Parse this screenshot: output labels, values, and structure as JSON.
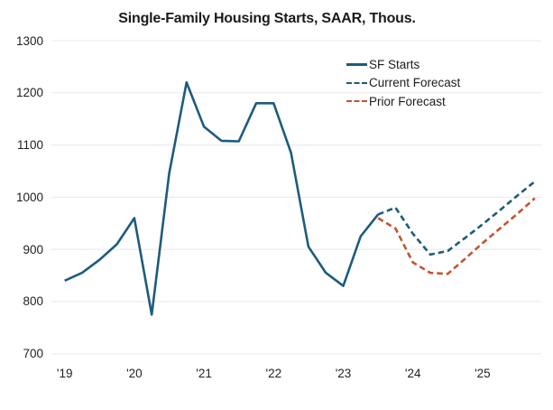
{
  "chart_data": {
    "type": "line",
    "title": "Single-Family Housing Starts, SAAR, Thous.",
    "grid": "horizontal",
    "legend_position": "upper-right",
    "colors": {
      "actual_line": "#1e5b7e",
      "current_forecast_line": "#1e5b7e",
      "prior_forecast_line": "#c2552f",
      "gridline": "#e8e8e8",
      "text": "#1f1f1f"
    },
    "y_axis": {
      "min": 700,
      "max": 1300,
      "tick_step": 100,
      "tick_labels": [
        "700",
        "800",
        "900",
        "1000",
        "1100",
        "1200",
        "1300"
      ]
    },
    "x_axis": {
      "start": "2019 Q1",
      "points_per_year": 4,
      "tick_labels": [
        "'19",
        "'20",
        "'21",
        "'22",
        "'23",
        "'24",
        "'25"
      ]
    },
    "series": [
      {
        "name": "SF Starts",
        "style": "solid",
        "color": "#1e5b7e",
        "start_index": 0,
        "values": [
          840,
          855,
          880,
          910,
          960,
          775,
          1045,
          1220,
          1135,
          1108,
          1107,
          1180,
          1180,
          1085,
          905,
          855,
          830,
          925,
          967
        ]
      },
      {
        "name": "Current Forecast",
        "style": "dashed",
        "color": "#1e5b7e",
        "start_index": 18,
        "values": [
          967,
          980,
          930,
          890,
          897,
          922,
          948,
          975,
          1003,
          1030
        ]
      },
      {
        "name": "Prior Forecast",
        "style": "dashed",
        "color": "#c2552f",
        "start_index": 18,
        "values": [
          960,
          940,
          875,
          855,
          853,
          882,
          912,
          940,
          968,
          998
        ]
      }
    ]
  }
}
